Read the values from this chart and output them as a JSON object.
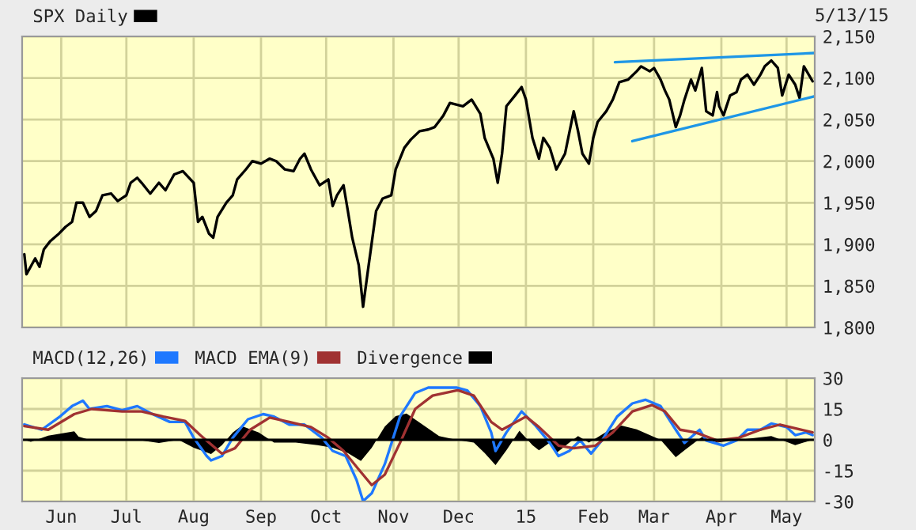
{
  "chart_data": [
    {
      "type": "line",
      "legend": "top left",
      "grid": true,
      "tick_labels": "y",
      "xlim": [
        "2014-05-14",
        "2015-05-14"
      ],
      "xticks": [
        {
          "value": "2014-06-01",
          "label": null
        },
        {
          "value": "2014-07-01",
          "label": null
        },
        {
          "value": "2014-08-01",
          "label": null
        },
        {
          "value": "2014-09-01",
          "label": null
        },
        {
          "value": "2014-10-01",
          "label": null
        },
        {
          "value": "2014-11-01",
          "label": null
        },
        {
          "value": "2014-12-01",
          "label": null
        },
        {
          "value": "2015-01-01",
          "label": null
        },
        {
          "value": "2015-02-01",
          "label": null
        },
        {
          "value": "2015-03-01",
          "label": null
        },
        {
          "value": "2015-04-01",
          "label": null
        },
        {
          "value": "2015-05-01",
          "label": null
        }
      ],
      "ylim": [
        1800,
        2150
      ],
      "yticks": [
        {
          "value": 1800,
          "label": "1,800"
        },
        {
          "value": 1850,
          "label": "1,850"
        },
        {
          "value": 1900,
          "label": "1,900"
        },
        {
          "value": 1950,
          "label": "1,950"
        },
        {
          "value": 2000,
          "label": "2,000"
        },
        {
          "value": 2050,
          "label": "2,050"
        },
        {
          "value": 2100,
          "label": "2,100"
        },
        {
          "value": 2150,
          "label": "2,150"
        }
      ],
      "annotations": [
        "5/13/15"
      ],
      "series": [
        {
          "name": "SPX Daily",
          "color": "#000000",
          "x": [
            "2014-05-15",
            "2014-05-16",
            "2014-05-20",
            "2014-05-22",
            "2014-05-24",
            "2014-05-27",
            "2014-05-31",
            "2014-06-03",
            "2014-06-06",
            "2014-06-08",
            "2014-06-11",
            "2014-06-14",
            "2014-06-17",
            "2014-06-20",
            "2014-06-24",
            "2014-06-27",
            "2014-07-01",
            "2014-07-03",
            "2014-07-06",
            "2014-07-08",
            "2014-07-12",
            "2014-07-16",
            "2014-07-19",
            "2014-07-23",
            "2014-07-27",
            "2014-08-01",
            "2014-08-03",
            "2014-08-05",
            "2014-08-08",
            "2014-08-10",
            "2014-08-12",
            "2014-08-16",
            "2014-08-19",
            "2014-08-21",
            "2014-08-25",
            "2014-08-28",
            "2014-09-01",
            "2014-09-05",
            "2014-09-08",
            "2014-09-12",
            "2014-09-16",
            "2014-09-19",
            "2014-09-21",
            "2014-09-24",
            "2014-09-28",
            "2014-10-02",
            "2014-10-04",
            "2014-10-06",
            "2014-10-09",
            "2014-10-11",
            "2014-10-13",
            "2014-10-16",
            "2014-10-18",
            "2014-10-20",
            "2014-10-22",
            "2014-10-24",
            "2014-10-27",
            "2014-10-31",
            "2014-11-02",
            "2014-11-06",
            "2014-11-09",
            "2014-11-13",
            "2014-11-17",
            "2014-11-20",
            "2014-11-24",
            "2014-11-27",
            "2014-12-03",
            "2014-12-07",
            "2014-12-11",
            "2014-12-13",
            "2014-12-17",
            "2014-12-19",
            "2014-12-21",
            "2014-12-23",
            "2014-12-27",
            "2014-12-30",
            "2015-01-01",
            "2015-01-04",
            "2015-01-07",
            "2015-01-09",
            "2015-01-12",
            "2015-01-15",
            "2015-01-19",
            "2015-01-23",
            "2015-01-25",
            "2015-01-27",
            "2015-01-30",
            "2015-02-01",
            "2015-02-03",
            "2015-02-07",
            "2015-02-10",
            "2015-02-13",
            "2015-02-17",
            "2015-02-21",
            "2015-02-23",
            "2015-02-27",
            "2015-03-01",
            "2015-03-04",
            "2015-03-06",
            "2015-03-08",
            "2015-03-11",
            "2015-03-13",
            "2015-03-15",
            "2015-03-18",
            "2015-03-20",
            "2015-03-23",
            "2015-03-25",
            "2015-03-28",
            "2015-03-30",
            "2015-03-31",
            "2015-04-02",
            "2015-04-05",
            "2015-04-08",
            "2015-04-10",
            "2015-04-13",
            "2015-04-16",
            "2015-04-19",
            "2015-04-21",
            "2015-04-24",
            "2015-04-27",
            "2015-04-29",
            "2015-05-02",
            "2015-05-05",
            "2015-05-07",
            "2015-05-09",
            "2015-05-13"
          ],
          "values": [
            1888,
            1864,
            1883,
            1873,
            1894,
            1904,
            1913,
            1921,
            1927,
            1950,
            1950,
            1933,
            1940,
            1959,
            1961,
            1952,
            1959,
            1974,
            1980,
            1974,
            1961,
            1974,
            1965,
            1984,
            1988,
            1974,
            1927,
            1933,
            1913,
            1908,
            1933,
            1950,
            1959,
            1978,
            1990,
            2000,
            1997,
            2003,
            2000,
            1990,
            1988,
            2003,
            2009,
            1990,
            1971,
            1978,
            1946,
            1959,
            1971,
            1940,
            1908,
            1875,
            1825,
            1864,
            1902,
            1940,
            1955,
            1959,
            1990,
            2016,
            2026,
            2036,
            2038,
            2041,
            2055,
            2070,
            2066,
            2074,
            2057,
            2028,
            2003,
            1974,
            2009,
            2066,
            2079,
            2089,
            2074,
            2028,
            2003,
            2028,
            2016,
            1990,
            2009,
            2060,
            2036,
            2009,
            1997,
            2028,
            2047,
            2060,
            2074,
            2095,
            2098,
            2108,
            2114,
            2108,
            2112,
            2098,
            2085,
            2074,
            2041,
            2055,
            2074,
            2098,
            2085,
            2112,
            2060,
            2055,
            2083,
            2066,
            2055,
            2079,
            2083,
            2098,
            2104,
            2092,
            2104,
            2114,
            2121,
            2112,
            2079,
            2104,
            2092,
            2076,
            2114,
            2096
          ]
        },
        {
          "type": "line",
          "color": "#1e96e6",
          "x": [
            "2015-02-11",
            "2015-05-14"
          ],
          "values": [
            2119,
            2130
          ]
        },
        {
          "type": "line",
          "color": "#1e96e6",
          "x": [
            "2015-02-19",
            "2015-05-14"
          ],
          "values": [
            2024,
            2078
          ]
        }
      ]
    },
    {
      "type": "line",
      "legend": "top left",
      "grid": true,
      "xlim": [
        "2014-05-14",
        "2015-05-14"
      ],
      "xticks": [
        {
          "value": "2014-06-01",
          "label": "Jun"
        },
        {
          "value": "2014-07-01",
          "label": "Jul"
        },
        {
          "value": "2014-08-01",
          "label": "Aug"
        },
        {
          "value": "2014-09-01",
          "label": "Sep"
        },
        {
          "value": "2014-10-01",
          "label": "Oct"
        },
        {
          "value": "2014-11-01",
          "label": "Nov"
        },
        {
          "value": "2014-12-01",
          "label": "Dec"
        },
        {
          "value": "2015-01-01",
          "label": "15"
        },
        {
          "value": "2015-02-01",
          "label": "Feb"
        },
        {
          "value": "2015-03-01",
          "label": "Mar"
        },
        {
          "value": "2015-04-01",
          "label": "Apr"
        },
        {
          "value": "2015-05-01",
          "label": "May"
        }
      ],
      "ylim": [
        -30,
        30
      ],
      "yticks": [
        -30,
        -15,
        0,
        15,
        30
      ],
      "series": [
        {
          "name": "MACD(12,26)",
          "color": "#1e78ff",
          "x": [
            "2014-05-15",
            "2014-05-23",
            "2014-05-31",
            "2014-06-06",
            "2014-06-11",
            "2014-06-14",
            "2014-06-22",
            "2014-06-29",
            "2014-07-06",
            "2014-07-13",
            "2014-07-21",
            "2014-07-28",
            "2014-08-01",
            "2014-08-07",
            "2014-08-09",
            "2014-08-14",
            "2014-08-19",
            "2014-08-26",
            "2014-09-02",
            "2014-09-07",
            "2014-09-14",
            "2014-09-21",
            "2014-09-29",
            "2014-10-04",
            "2014-10-10",
            "2014-10-15",
            "2014-10-18",
            "2014-10-22",
            "2014-10-28",
            "2014-11-04",
            "2014-11-11",
            "2014-11-17",
            "2014-11-30",
            "2014-12-05",
            "2014-12-11",
            "2014-12-16",
            "2014-12-18",
            "2014-12-23",
            "2014-12-30",
            "2015-01-05",
            "2015-01-12",
            "2015-01-16",
            "2015-01-21",
            "2015-01-26",
            "2015-01-31",
            "2015-02-05",
            "2015-02-12",
            "2015-02-19",
            "2015-02-25",
            "2015-03-04",
            "2015-03-11",
            "2015-03-15",
            "2015-03-22",
            "2015-03-25",
            "2015-04-02",
            "2015-04-08",
            "2015-04-13",
            "2015-04-19",
            "2015-04-24",
            "2015-05-01",
            "2015-05-05",
            "2015-05-10",
            "2015-05-13"
          ],
          "values": [
            7.5,
            4.9,
            11,
            16.4,
            19,
            15,
            16.4,
            14.4,
            16.4,
            12.5,
            8.7,
            8.7,
            1,
            -7.9,
            -10,
            -7.9,
            1,
            10,
            12.5,
            11.3,
            7.4,
            7.4,
            1,
            -5.4,
            -7.9,
            -19.5,
            -29.8,
            -26,
            -11.8,
            11.3,
            22.8,
            25.4,
            25.4,
            24,
            16.4,
            3.6,
            -5.4,
            3.6,
            13.8,
            7.4,
            -1.5,
            -7.9,
            -5.4,
            -0.3,
            -6.7,
            -0.3,
            11.3,
            17.7,
            19.5,
            16.4,
            4.9,
            -1.5,
            4.9,
            -0.3,
            -2.8,
            -0.3,
            4.9,
            4.9,
            7.9,
            6.2,
            2.3,
            3.6,
            2.3
          ]
        },
        {
          "name": "MACD EMA(9)",
          "color": "#a03232",
          "x": [
            "2014-05-15",
            "2014-05-26",
            "2014-06-07",
            "2014-06-15",
            "2014-06-29",
            "2014-07-08",
            "2014-07-18",
            "2014-07-28",
            "2014-08-04",
            "2014-08-14",
            "2014-08-20",
            "2014-08-27",
            "2014-09-05",
            "2014-09-14",
            "2014-09-24",
            "2014-10-02",
            "2014-10-09",
            "2014-10-16",
            "2014-10-22",
            "2014-10-28",
            "2014-11-04",
            "2014-11-11",
            "2014-11-19",
            "2014-11-30",
            "2014-12-01",
            "2014-12-08",
            "2014-12-16",
            "2014-12-21",
            "2015-01-01",
            "2015-01-07",
            "2015-01-16",
            "2015-01-23",
            "2015-02-02",
            "2015-02-10",
            "2015-02-19",
            "2015-02-28",
            "2015-03-06",
            "2015-03-13",
            "2015-03-20",
            "2015-03-30",
            "2015-04-09",
            "2015-04-19",
            "2015-04-28",
            "2015-05-08",
            "2015-05-13"
          ],
          "values": [
            6.7,
            4.9,
            12.5,
            15,
            13.8,
            13.8,
            11.3,
            9.2,
            2.3,
            -6.7,
            -4.1,
            4.9,
            10.8,
            8.7,
            6.2,
            1,
            -5.4,
            -14.4,
            -22,
            -16.9,
            -1.5,
            15,
            21.5,
            24,
            24,
            21.5,
            8.7,
            4.9,
            11.3,
            6.2,
            -2.8,
            -4.1,
            -2.8,
            3.6,
            13.8,
            16.9,
            13.8,
            4.9,
            3.6,
            -0.3,
            1,
            4.9,
            7.4,
            4.9,
            3.6
          ]
        },
        {
          "name": "Divergence",
          "type": "area",
          "color": "#000000",
          "x": [
            "2014-05-15",
            "2014-05-18",
            "2014-05-26",
            "2014-06-07",
            "2014-06-09",
            "2014-06-14",
            "2014-06-26",
            "2014-07-06",
            "2014-07-16",
            "2014-07-25",
            "2014-08-01",
            "2014-08-09",
            "2014-08-14",
            "2014-08-19",
            "2014-08-23",
            "2014-08-31",
            "2014-09-07",
            "2014-09-17",
            "2014-09-27",
            "2014-10-04",
            "2014-10-11",
            "2014-10-17",
            "2014-10-22",
            "2014-10-28",
            "2014-11-02",
            "2014-11-07",
            "2014-11-14",
            "2014-11-22",
            "2014-11-30",
            "2014-12-08",
            "2014-12-13",
            "2014-12-18",
            "2014-12-23",
            "2014-12-29",
            "2015-01-04",
            "2015-01-07",
            "2015-01-12",
            "2015-01-15",
            "2015-01-21",
            "2015-01-25",
            "2015-01-30",
            "2015-02-07",
            "2015-02-14",
            "2015-02-21",
            "2015-03-04",
            "2015-03-11",
            "2015-03-15",
            "2015-03-23",
            "2015-03-30",
            "2015-04-09",
            "2015-04-24",
            "2015-05-05",
            "2015-05-13"
          ],
          "values": [
            0,
            -1,
            2,
            4.1,
            1.5,
            0,
            0,
            0,
            -1.5,
            0,
            -3.8,
            -6.9,
            -2.6,
            3.6,
            6.7,
            3.6,
            -1.3,
            -1.3,
            -2.6,
            -3.8,
            -6.4,
            -10.3,
            -3.8,
            6.4,
            11.5,
            12.8,
            7.7,
            1.8,
            0,
            -1.3,
            -6.4,
            -12.3,
            -5.1,
            4.4,
            -2.6,
            -5.1,
            -1.3,
            -6.4,
            -1.3,
            1.8,
            -1.3,
            3.8,
            6.9,
            5.1,
            0,
            -8.5,
            -5.1,
            1.3,
            -1.3,
            0,
            1.8,
            -2.6,
            0
          ]
        }
      ]
    }
  ]
}
